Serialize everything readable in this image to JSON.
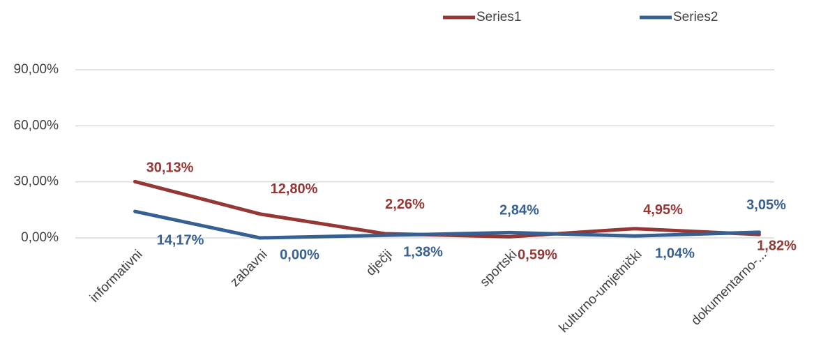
{
  "chart_data": {
    "type": "line",
    "categories": [
      "informativni",
      "zabavni",
      "dječji",
      "sportski",
      "kulturno-umjetnički",
      "dokumentarno-..."
    ],
    "series": [
      {
        "name": "Series1",
        "color": "#953735",
        "values": [
          30.13,
          12.8,
          2.26,
          0.59,
          4.95,
          1.82
        ],
        "value_labels": [
          "30,13%",
          "12,80%",
          "2,26%",
          "0,59%",
          "4,95%",
          "1,82%"
        ]
      },
      {
        "name": "Series2",
        "color": "#376092",
        "values": [
          14.17,
          0.0,
          1.38,
          2.84,
          1.04,
          3.05
        ],
        "value_labels": [
          "14,17%",
          "0,00%",
          "1,38%",
          "2,84%",
          "1,04%",
          "3,05%"
        ]
      }
    ],
    "ylim": [
      0,
      90
    ],
    "yticks": [
      {
        "value": 0,
        "label": "0,00%"
      },
      {
        "value": 30,
        "label": "30,00%"
      },
      {
        "value": 60,
        "label": "60,00%"
      },
      {
        "value": 90,
        "label": "90,00%"
      }
    ],
    "grid": true,
    "legend": "top"
  }
}
